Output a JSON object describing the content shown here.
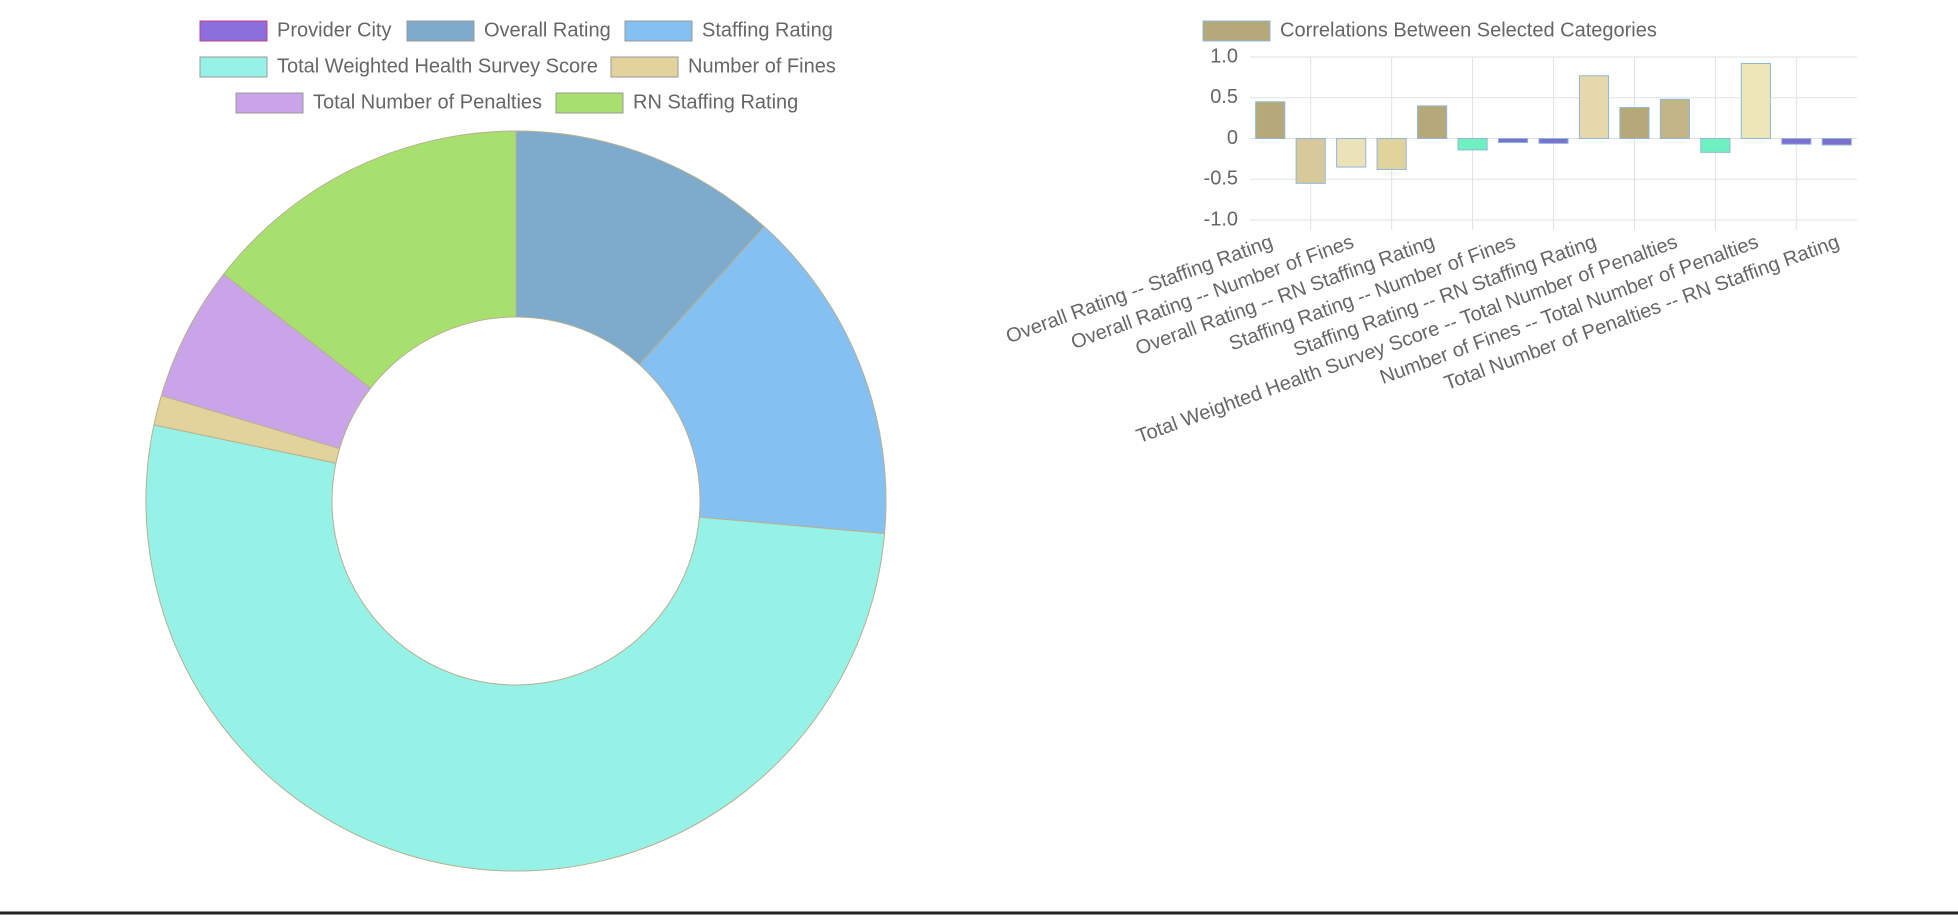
{
  "chart_data": [
    {
      "type": "doughnut",
      "categories": [
        "Provider City",
        "Overall Rating",
        "Staffing Rating",
        "Total Weighted Health Survey Score",
        "Number of Fines",
        "Total Number of Penalties",
        "RN Staffing Rating"
      ],
      "values": [
        0,
        11.7,
        14.7,
        51.9,
        1.3,
        5.9,
        14.5
      ],
      "colors": [
        "#8b6fdc",
        "#7eaacb",
        "#84c0f2",
        "#96f2e6",
        "#e2d39c",
        "#c9a4e8",
        "#a8e070"
      ]
    },
    {
      "type": "bar",
      "series": [
        {
          "name": "Correlations Between Selected Categories",
          "color": "#b5a97a",
          "values": [
            0.45,
            -0.55,
            -0.35,
            -0.38,
            0.4,
            -0.14,
            -0.05,
            -0.06,
            0.77,
            0.38,
            0.48,
            -0.17,
            0.92,
            -0.07,
            -0.08
          ]
        }
      ],
      "colors": [
        "#b5a97a",
        "#d8c99a",
        "#ece2b8",
        "#e2d39c",
        "#b5a97a",
        "#6ff0c0",
        "#7b6fd0",
        "#7b6fd0",
        "#e6d8ac",
        "#b5a97a",
        "#c2b588",
        "#6ff0c0",
        "#ece6b8",
        "#7b6fd0",
        "#7b6fd0"
      ],
      "categories": [
        "Overall Rating -- Staffing Rating",
        null,
        "Overall Rating -- Number of Fines",
        null,
        "Overall Rating -- RN Staffing Rating",
        null,
        "Staffing Rating -- Number of Fines",
        null,
        "Staffing Rating -- RN Staffing Rating",
        null,
        "Total Weighted Health Survey Score -- Total Number of Penalties",
        null,
        "Number of Fines -- Total Number of Penalties",
        null,
        "Total Number of Penalties -- RN Staffing Rating"
      ],
      "ylim": [
        -1,
        1
      ],
      "yticks": [
        {
          "value": 1,
          "label": "1.0"
        },
        0.5,
        0,
        -0.5,
        {
          "value": -1,
          "label": "-1.0"
        }
      ],
      "grid": true
    }
  ]
}
